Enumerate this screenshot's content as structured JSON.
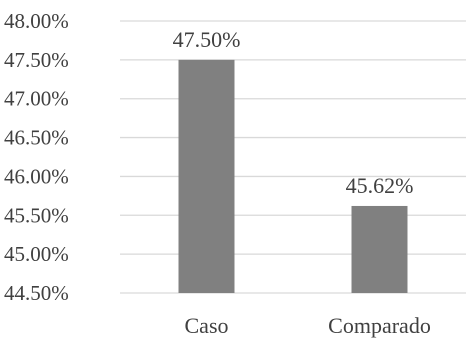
{
  "chart_data": {
    "type": "bar",
    "title": "",
    "xlabel": "",
    "ylabel": "",
    "categories": [
      "Caso",
      "Comparado"
    ],
    "values": [
      47.5,
      45.62
    ],
    "data_labels": [
      "47.50%",
      "45.62%"
    ],
    "ylim": [
      44.5,
      48.0
    ],
    "yticks": [
      44.5,
      45.0,
      45.5,
      46.0,
      46.5,
      47.0,
      47.5,
      48.0
    ],
    "ytick_labels": [
      "44.50%",
      "45.00%",
      "45.50%",
      "46.00%",
      "46.50%",
      "47.00%",
      "47.50%",
      "48.00%"
    ],
    "grid": true,
    "legend": "none",
    "colors": {
      "bar": "#808080",
      "grid": "#d9d9d9",
      "text": "#404040"
    }
  }
}
